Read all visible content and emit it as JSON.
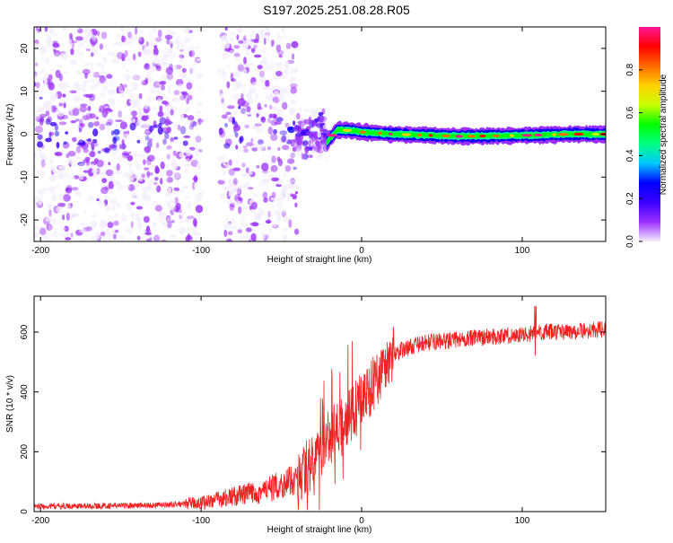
{
  "title": "S197.2025.251.08.28.R05",
  "colors": {
    "snr_line": "#ee2222",
    "axis": "#000000",
    "background": "#ffffff"
  },
  "chart_data": [
    {
      "type": "heatmap",
      "name": "spectrogram",
      "xlabel": "Height of straight line (km)",
      "ylabel": "Frequency (Hz)",
      "xlim": [
        -204,
        152
      ],
      "ylim": [
        -25,
        25
      ],
      "xticks": [
        -200,
        -100,
        0,
        100
      ],
      "yticks": [
        -20,
        -10,
        0,
        10,
        20
      ],
      "x_tick_labels": [
        "-200",
        "-100",
        "0",
        "100"
      ],
      "y_tick_labels": [
        "-20",
        "-10",
        "0",
        "10",
        "20"
      ],
      "carrier": {
        "x_start": -22,
        "x_end": 152,
        "frequency_points": [
          [
            -22,
            -2
          ],
          [
            -15,
            1
          ],
          [
            -5,
            0.8
          ],
          [
            0,
            0.5
          ],
          [
            20,
            0
          ],
          [
            60,
            -0.5
          ],
          [
            100,
            -0.3
          ],
          [
            130,
            0
          ],
          [
            152,
            0
          ]
        ]
      },
      "noise_regions": [
        {
          "x_start": -204,
          "x_end": -100,
          "freq_half_width": 25,
          "level": "dense"
        },
        {
          "x_start": -88,
          "x_end": -40,
          "freq_half_width": 25,
          "level": "dense"
        },
        {
          "x_start": -40,
          "x_end": -22,
          "freq_half_width": 7,
          "level": "moderate"
        }
      ],
      "colorbar": {
        "label": "Normalized spectral amplitude",
        "range": [
          0,
          1
        ],
        "ticks": [
          0.0,
          0.2,
          0.4,
          0.6,
          0.8
        ],
        "tick_labels": [
          "0.0",
          "0.2",
          "0.4",
          "0.6",
          "0.8"
        ],
        "colormap": [
          "#f3eefb",
          "#9b30ff",
          "#3b00ff",
          "#0000ff",
          "#00c8ff",
          "#00ff80",
          "#00ff00",
          "#c8ff00",
          "#ffd000",
          "#ff6a00",
          "#ff0000",
          "#ff1493"
        ]
      }
    },
    {
      "type": "line",
      "name": "snr",
      "xlabel": "Height of straight line (km)",
      "ylabel": "SNR (10 * v/v)",
      "xlim": [
        -204,
        152
      ],
      "ylim": [
        0,
        720
      ],
      "xticks": [
        -200,
        -100,
        0,
        100
      ],
      "yticks": [
        0,
        200,
        400,
        600
      ],
      "x_tick_labels": [
        "-200",
        "-100",
        "0",
        "100"
      ],
      "y_tick_labels": [
        "0",
        "200",
        "400",
        "600"
      ],
      "series": [
        {
          "name": "SNR",
          "x": [
            -204,
            -180,
            -150,
            -120,
            -100,
            -80,
            -60,
            -40,
            -30,
            -20,
            -10,
            0,
            10,
            20,
            30,
            40,
            60,
            80,
            100,
            110,
            120,
            140,
            152
          ],
          "y": [
            18,
            18,
            20,
            22,
            30,
            50,
            70,
            110,
            170,
            250,
            300,
            370,
            450,
            530,
            550,
            565,
            575,
            585,
            590,
            600,
            600,
            605,
            610
          ]
        }
      ]
    }
  ]
}
